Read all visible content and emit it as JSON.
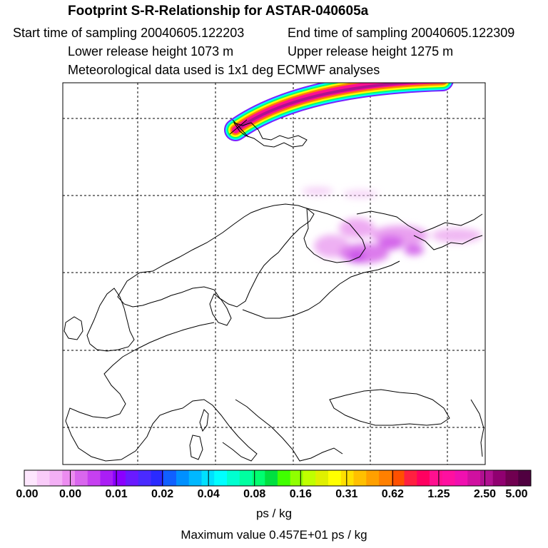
{
  "header": {
    "title": "Footprint S-R-Relationship for ASTAR-040605a",
    "start_time": "Start time of sampling 20040605.122203",
    "end_time": "End time of sampling 20040605.122309",
    "lower_height": "Lower release height 1073 m",
    "upper_height": "Upper release height 1275 m",
    "met_data": "Meteorological data used is 1x1 deg ECMWF analyses"
  },
  "colorbar": {
    "colors": [
      "#fde6fd",
      "#f9ccf9",
      "#f3b0f5",
      "#ec8cf0",
      "#d966ee",
      "#c640f0",
      "#aa1ef5",
      "#8a00ff",
      "#6a1aff",
      "#4a2aff",
      "#2a2aff",
      "#1060ff",
      "#0090ff",
      "#00b8ff",
      "#00e0ff",
      "#00ffff",
      "#00ffd0",
      "#00ffa0",
      "#00ff70",
      "#00e040",
      "#40ff00",
      "#90ff00",
      "#c0ff00",
      "#e0f000",
      "#ffff00",
      "#ffe000",
      "#ffc000",
      "#ffa000",
      "#ff8000",
      "#ff5000",
      "#ff2040",
      "#ff0060",
      "#ff1090",
      "#ff10a0",
      "#f010b0",
      "#d010a0",
      "#b01090",
      "#900070",
      "#700050",
      "#500040"
    ],
    "tick_labels": [
      "0.00",
      "0.00",
      "0.01",
      "0.02",
      "0.04",
      "0.08",
      "0.16",
      "0.31",
      "0.62",
      "1.25",
      "2.50",
      "5.00"
    ],
    "unit": "ps / kg"
  },
  "footer": {
    "maximum_value": "Maximum value  0.457E+01 ps / kg"
  }
}
